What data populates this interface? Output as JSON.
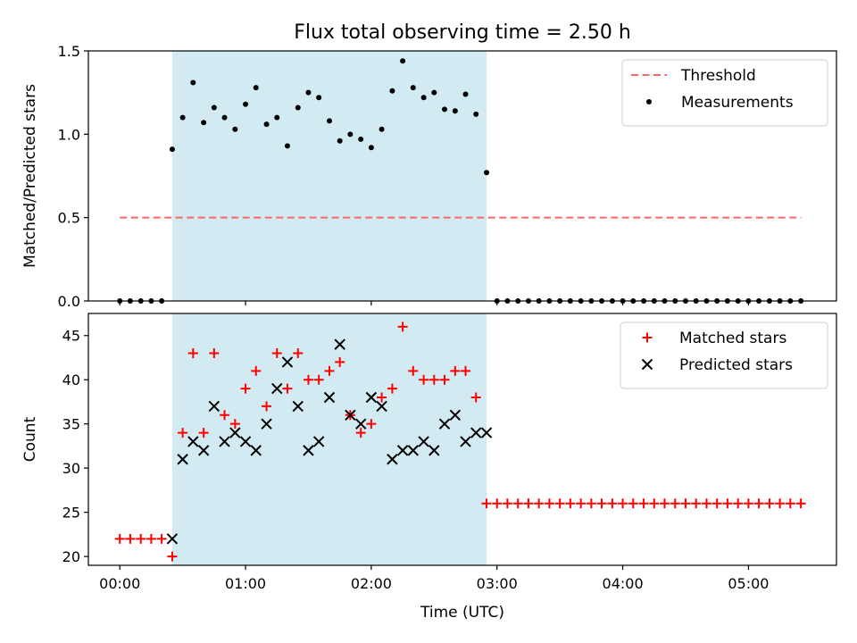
{
  "figure": {
    "title": "Flux total observing time = 2.50 h"
  },
  "shade_color": "#add8e6",
  "chart_data": [
    {
      "type": "scatter",
      "ylabel": "Matched/Predicted stars",
      "xlabel": "",
      "xlim": [
        -0.25,
        5.7
      ],
      "ylim": [
        0,
        1.5
      ],
      "yticks": [
        0.0,
        0.5,
        1.0,
        1.5
      ],
      "ytick_labels": [
        "0.0",
        "0.5",
        "1.0",
        "1.5"
      ],
      "shaded_span": [
        0.417,
        2.917
      ],
      "legend_position": "top-right",
      "threshold": {
        "name": "Threshold",
        "color": "#ff6666",
        "style": "dashed",
        "x": [
          0.0,
          5.42
        ],
        "y": 0.5
      },
      "series": [
        {
          "name": "Measurements",
          "color": "#000000",
          "marker": "dot",
          "x": [
            0.0,
            0.083,
            0.167,
            0.25,
            0.333,
            0.417,
            0.5,
            0.583,
            0.667,
            0.75,
            0.833,
            0.917,
            1.0,
            1.083,
            1.167,
            1.25,
            1.333,
            1.417,
            1.5,
            1.583,
            1.667,
            1.75,
            1.833,
            1.917,
            2.0,
            2.083,
            2.167,
            2.25,
            2.333,
            2.417,
            2.5,
            2.583,
            2.667,
            2.75,
            2.833,
            2.917,
            3.0,
            3.083,
            3.167,
            3.25,
            3.333,
            3.417,
            3.5,
            3.583,
            3.667,
            3.75,
            3.833,
            3.917,
            4.0,
            4.083,
            4.167,
            4.25,
            4.333,
            4.417,
            4.5,
            4.583,
            4.667,
            4.75,
            4.833,
            4.917,
            5.0,
            5.083,
            5.167,
            5.25,
            5.333,
            5.417
          ],
          "y": [
            0,
            0,
            0,
            0,
            0,
            0.91,
            1.1,
            1.31,
            1.07,
            1.16,
            1.1,
            1.03,
            1.18,
            1.28,
            1.06,
            1.1,
            0.93,
            1.16,
            1.25,
            1.22,
            1.08,
            0.96,
            1.0,
            0.97,
            0.92,
            1.03,
            1.26,
            1.44,
            1.28,
            1.22,
            1.25,
            1.15,
            1.14,
            1.24,
            1.12,
            0.77,
            0,
            0,
            0,
            0,
            0,
            0,
            0,
            0,
            0,
            0,
            0,
            0,
            0,
            0,
            0,
            0,
            0,
            0,
            0,
            0,
            0,
            0,
            0,
            0,
            0,
            0,
            0,
            0,
            0,
            0
          ]
        }
      ]
    },
    {
      "type": "scatter",
      "xlabel": "Time (UTC)",
      "ylabel": "Count",
      "xlim": [
        -0.25,
        5.7
      ],
      "ylim": [
        19,
        47.5
      ],
      "yticks": [
        20,
        25,
        30,
        35,
        40,
        45
      ],
      "ytick_labels": [
        "20",
        "25",
        "30",
        "35",
        "40",
        "45"
      ],
      "xticks": [
        0,
        1,
        2,
        3,
        4,
        5
      ],
      "xtick_labels": [
        "00:00",
        "01:00",
        "02:00",
        "03:00",
        "04:00",
        "05:00"
      ],
      "shaded_span": [
        0.417,
        2.917
      ],
      "legend_position": "top-right",
      "series": [
        {
          "name": "Matched stars",
          "color": "#ff0000",
          "marker": "plus",
          "x": [
            0.0,
            0.083,
            0.167,
            0.25,
            0.333,
            0.417,
            0.5,
            0.583,
            0.667,
            0.75,
            0.833,
            0.917,
            1.0,
            1.083,
            1.167,
            1.25,
            1.333,
            1.417,
            1.5,
            1.583,
            1.667,
            1.75,
            1.833,
            1.917,
            2.0,
            2.083,
            2.167,
            2.25,
            2.333,
            2.417,
            2.5,
            2.583,
            2.667,
            2.75,
            2.833,
            2.917,
            3.0,
            3.083,
            3.167,
            3.25,
            3.333,
            3.417,
            3.5,
            3.583,
            3.667,
            3.75,
            3.833,
            3.917,
            4.0,
            4.083,
            4.167,
            4.25,
            4.333,
            4.417,
            4.5,
            4.583,
            4.667,
            4.75,
            4.833,
            4.917,
            5.0,
            5.083,
            5.167,
            5.25,
            5.333,
            5.417
          ],
          "y": [
            22,
            22,
            22,
            22,
            22,
            20,
            34,
            43,
            34,
            43,
            36,
            35,
            39,
            41,
            37,
            43,
            39,
            43,
            40,
            40,
            41,
            42,
            36,
            34,
            35,
            38,
            39,
            46,
            41,
            40,
            40,
            40,
            41,
            41,
            38,
            26,
            26,
            26,
            26,
            26,
            26,
            26,
            26,
            26,
            26,
            26,
            26,
            26,
            26,
            26,
            26,
            26,
            26,
            26,
            26,
            26,
            26,
            26,
            26,
            26,
            26,
            26,
            26,
            26,
            26,
            26
          ]
        },
        {
          "name": "Predicted stars",
          "color": "#000000",
          "marker": "x",
          "x": [
            0.417,
            0.5,
            0.583,
            0.667,
            0.75,
            0.833,
            0.917,
            1.0,
            1.083,
            1.167,
            1.25,
            1.333,
            1.417,
            1.5,
            1.583,
            1.667,
            1.75,
            1.833,
            1.917,
            2.0,
            2.083,
            2.167,
            2.25,
            2.333,
            2.417,
            2.5,
            2.583,
            2.667,
            2.75,
            2.833,
            2.917
          ],
          "y": [
            22,
            31,
            33,
            32,
            37,
            33,
            34,
            33,
            32,
            35,
            39,
            42,
            37,
            32,
            33,
            38,
            44,
            36,
            35,
            38,
            37,
            31,
            32,
            32,
            33,
            32,
            35,
            36,
            33,
            34,
            34
          ]
        }
      ]
    }
  ]
}
